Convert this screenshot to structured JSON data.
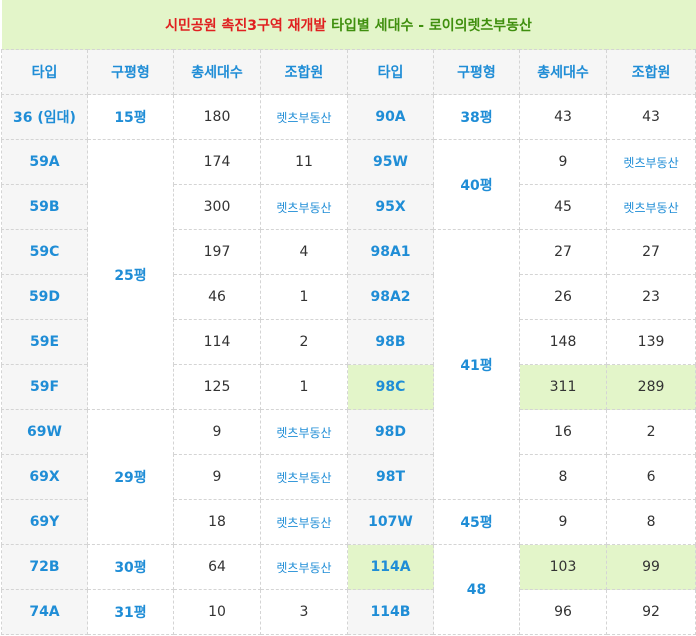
{
  "title": {
    "part1": "시민공원 촉진3구역 재개발",
    "part2": "타입별 세대수 - 로이의렛츠부동산"
  },
  "headers": [
    "타입",
    "구평형",
    "총세대수",
    "조합원",
    "타입",
    "구평형",
    "총세대수",
    "조합원"
  ],
  "link_text": "렛츠부동산",
  "left": {
    "types": [
      "36 (임대)",
      "59A",
      "59B",
      "59C",
      "59D",
      "59E",
      "59F",
      "69W",
      "69X",
      "69Y",
      "72B",
      "74A"
    ],
    "pyeong": [
      "15평",
      "25평",
      "29평",
      "30평",
      "31평"
    ],
    "total": [
      "180",
      "174",
      "300",
      "197",
      "46",
      "114",
      "125",
      "9",
      "9",
      "18",
      "64",
      "10"
    ],
    "members": [
      "렛츠부동산",
      "11",
      "렛츠부동산",
      "4",
      "1",
      "2",
      "1",
      "렛츠부동산",
      "렛츠부동산",
      "렛츠부동산",
      "렛츠부동산",
      "3"
    ]
  },
  "right": {
    "types": [
      "90A",
      "95W",
      "95X",
      "98A1",
      "98A2",
      "98B",
      "98C",
      "98D",
      "98T",
      "107W",
      "114A",
      "114B"
    ],
    "pyeong": [
      "38평",
      "40평",
      "41평",
      "45평",
      "48"
    ],
    "total": [
      "43",
      "9",
      "45",
      "27",
      "26",
      "148",
      "311",
      "16",
      "8",
      "9",
      "103",
      "96"
    ],
    "members": [
      "43",
      "렛츠부동산",
      "렛츠부동산",
      "27",
      "23",
      "139",
      "289",
      "2",
      "6",
      "8",
      "99",
      "92"
    ]
  },
  "colors": {
    "accent_blue": "#1f8dd6",
    "title_red": "#e02020",
    "title_green": "#3f8f0e",
    "highlight": "#e3f5c9"
  }
}
